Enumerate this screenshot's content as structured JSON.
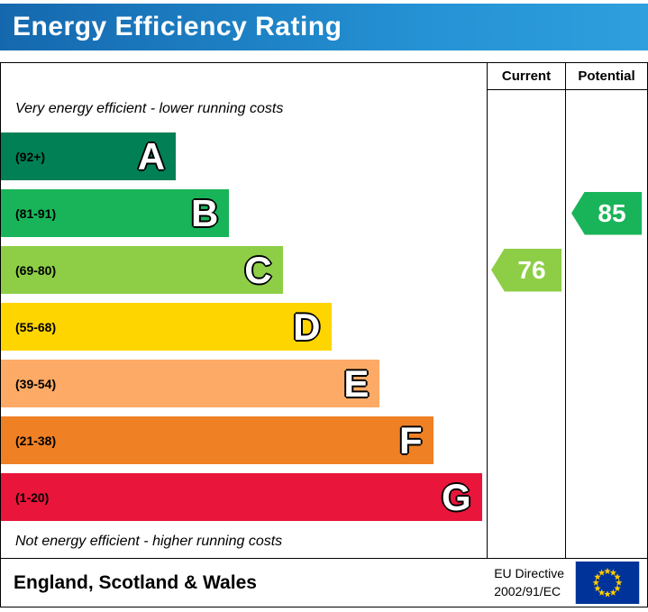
{
  "header": {
    "title": "Energy Efficiency Rating"
  },
  "table": {
    "current_label": "Current",
    "potential_label": "Potential"
  },
  "chart_data": {
    "type": "bar",
    "orientation": "horizontal",
    "title": "Energy Efficiency Rating",
    "top_note": "Very energy efficient - lower running costs",
    "bottom_note": "Not energy efficient - higher running costs",
    "columns": [
      "Current",
      "Potential"
    ],
    "bands": [
      {
        "letter": "A",
        "range": "(92+)",
        "color": "#008054",
        "width_pct": 36
      },
      {
        "letter": "B",
        "range": "(81-91)",
        "color": "#19b459",
        "width_pct": 47
      },
      {
        "letter": "C",
        "range": "(69-80)",
        "color": "#8dce46",
        "width_pct": 58
      },
      {
        "letter": "D",
        "range": "(55-68)",
        "color": "#ffd500",
        "width_pct": 68
      },
      {
        "letter": "E",
        "range": "(39-54)",
        "color": "#fcaa65",
        "width_pct": 78
      },
      {
        "letter": "F",
        "range": "(21-38)",
        "color": "#ef8023",
        "width_pct": 89
      },
      {
        "letter": "G",
        "range": "(1-20)",
        "color": "#e9153b",
        "width_pct": 99
      }
    ],
    "current": {
      "value": 76,
      "band": "C",
      "color": "#8dce46"
    },
    "potential": {
      "value": 85,
      "band": "B",
      "color": "#19b459"
    }
  },
  "footer": {
    "region": "England, Scotland & Wales",
    "directive_line1": "EU Directive",
    "directive_line2": "2002/91/EC",
    "flag_icon": "eu-flag",
    "flag_colors": {
      "field": "#003399",
      "stars": "#ffcc00"
    }
  }
}
